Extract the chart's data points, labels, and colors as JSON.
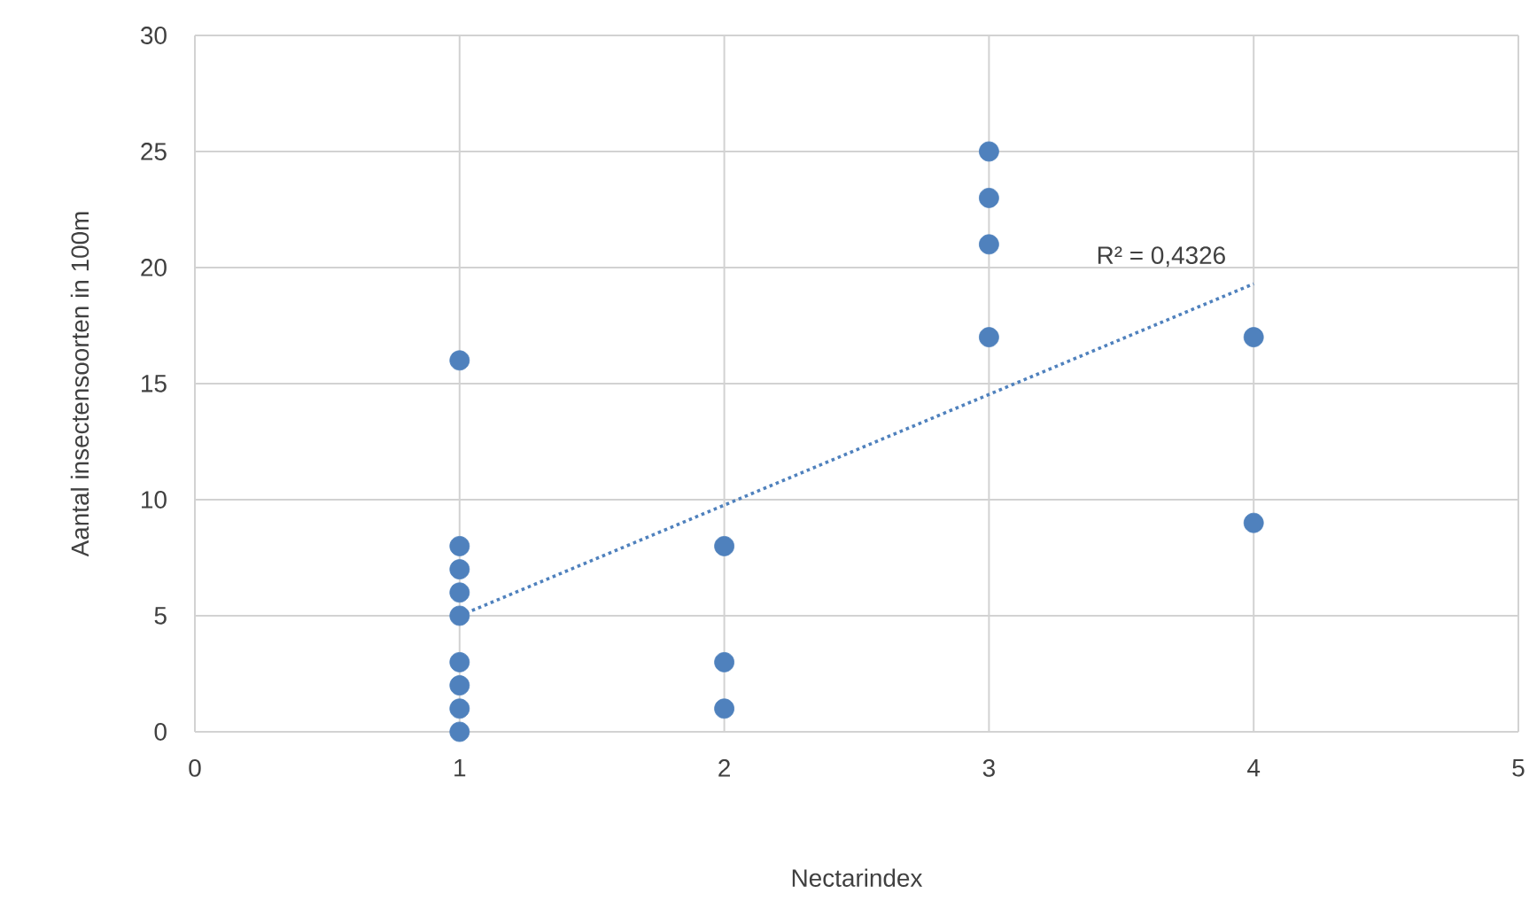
{
  "chart_data": {
    "type": "scatter",
    "xlabel": "Nectarindex",
    "ylabel": "Aantal insectensoorten in 100m",
    "xlim": [
      0,
      5
    ],
    "xticks": [
      0,
      1,
      2,
      3,
      4,
      5
    ],
    "ylim": [
      0,
      30
    ],
    "yticks": [
      0,
      5,
      10,
      15,
      20,
      25,
      30
    ],
    "grid": true,
    "series": [
      {
        "color": "#4f81bd",
        "marker": "circle",
        "x": [
          1,
          1,
          1,
          1,
          1,
          1,
          1,
          1,
          1,
          2,
          2,
          2,
          3,
          3,
          3,
          3,
          4,
          4
        ],
        "values": [
          16,
          8,
          7,
          6,
          5,
          3,
          2,
          1,
          0,
          8,
          3,
          1,
          25,
          23,
          21,
          17,
          17,
          9
        ]
      },
      {
        "type": "line",
        "color": "#4f81bd",
        "line_style": "dotted",
        "marker": "none",
        "x": [
          1,
          4
        ],
        "values": [
          5.0,
          19.3
        ]
      }
    ],
    "annotations": [
      "R² = 0,4326"
    ]
  }
}
